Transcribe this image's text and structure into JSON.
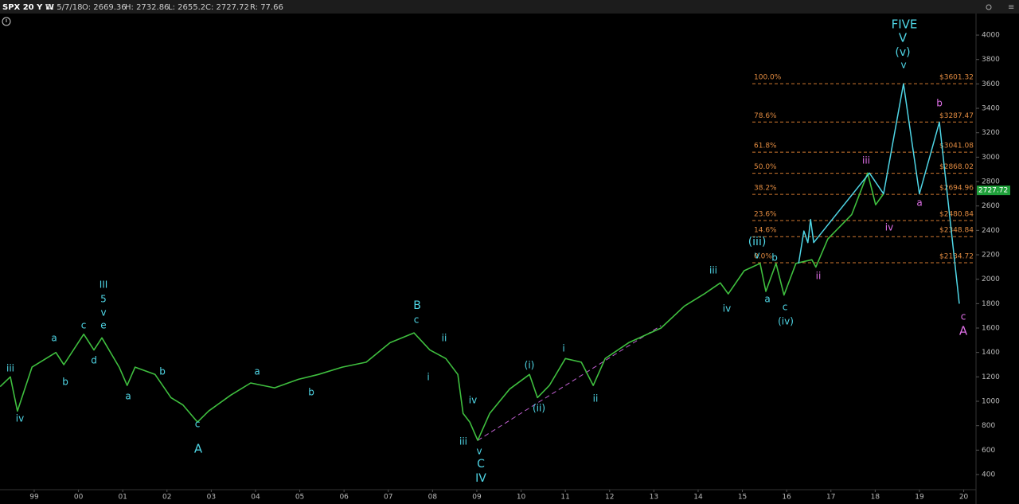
{
  "chart_data": {
    "type": "line",
    "title": "SPX 20 Y W",
    "header_fields": [
      "D: 5/7/18",
      "O: 2669.36",
      "H: 2732.86",
      "L: 2655.2",
      "C: 2727.72",
      "R: 77.66"
    ],
    "color": "#3fbf3f",
    "x": [
      1998.23,
      1998.46,
      1998.62,
      1998.95,
      1999.49,
      1999.67,
      2000.12,
      2000.35,
      2000.53,
      2000.92,
      2001.1,
      2001.28,
      2001.73,
      2002.09,
      2002.36,
      2002.69,
      2002.94,
      2003.44,
      2003.89,
      2004.43,
      2004.97,
      2005.42,
      2005.96,
      2006.5,
      2007.04,
      2007.58,
      2007.94,
      2008.3,
      2008.57,
      2008.69,
      2008.84,
      2009.02,
      2009.29,
      2009.74,
      2010.19,
      2010.37,
      2010.64,
      2011.0,
      2011.36,
      2011.63,
      2011.9,
      2012.43,
      2013.16,
      2013.69,
      2014.14,
      2014.5,
      2014.68,
      2015.04,
      2015.4,
      2015.53,
      2015.76,
      2015.94,
      2016.21,
      2016.57,
      2016.66,
      2016.93,
      2017.47,
      2017.83,
      2018.01,
      2018.19
    ],
    "values": [
      1120,
      1200,
      920,
      1280,
      1400,
      1300,
      1550,
      1420,
      1520,
      1280,
      1130,
      1280,
      1220,
      1030,
      970,
      830,
      920,
      1050,
      1150,
      1110,
      1180,
      1220,
      1280,
      1320,
      1480,
      1560,
      1420,
      1350,
      1220,
      900,
      830,
      680,
      900,
      1100,
      1220,
      1030,
      1130,
      1350,
      1320,
      1130,
      1350,
      1480,
      1600,
      1780,
      1880,
      1970,
      1880,
      2070,
      2130,
      1900,
      2130,
      1870,
      2130,
      2160,
      2100,
      2330,
      2530,
      2870,
      2610,
      2700
    ],
    "projection": {
      "color": "#4fd6e6",
      "x": [
        2016.27,
        2016.39,
        2016.48,
        2016.54,
        2016.61,
        2017.87,
        2018.19,
        2018.64,
        2019.0,
        2019.45,
        2019.9
      ],
      "values": [
        2130,
        2395,
        2300,
        2490,
        2300,
        2870,
        2700,
        3601.32,
        2700,
        3287,
        1800
      ]
    },
    "trendline": {
      "color": "#c060d0",
      "x": [
        2009.02,
        2013.16
      ],
      "values": [
        680,
        1620
      ]
    },
    "fib_levels": [
      {
        "pct": "100.0%",
        "price": {
          "value": 3601.32,
          "label": "$3601.32"
        }
      },
      {
        "pct": "78.6%",
        "price": {
          "value": 3287.47,
          "label": "$3287.47"
        }
      },
      {
        "pct": "61.8%",
        "price": {
          "value": 3041.08,
          "label": "$3041.08"
        }
      },
      {
        "pct": "50.0%",
        "price": {
          "value": 2868.02,
          "label": "$2868.02"
        }
      },
      {
        "pct": "38.2%",
        "price": {
          "value": 2694.96,
          "label": "$2694.96"
        }
      },
      {
        "pct": "23.6%",
        "price": {
          "value": 2480.84,
          "label": "$2480.84"
        }
      },
      {
        "pct": "14.6%",
        "price": {
          "value": 2348.84,
          "label": "$2348.84"
        }
      },
      {
        "pct": "0.0%",
        "price": {
          "value": 2134.72,
          "label": "$2134.72"
        }
      }
    ],
    "last_price": 2727.72,
    "wave_labels": [
      "iii",
      "iv",
      "a",
      "b",
      "c",
      "d",
      "III",
      "5",
      "v",
      "e",
      "a",
      "b",
      "c",
      "A",
      "a",
      "b",
      "B",
      "c",
      "i",
      "ii",
      "iii",
      "iv",
      "v",
      "C",
      "IV",
      "(i)",
      "(ii)",
      "i",
      "ii",
      "iii",
      "iv",
      "(iii)",
      "v",
      "b",
      "a",
      "c",
      "(iv)",
      "ii",
      "iii",
      "iv",
      "a",
      "b",
      "c",
      "A",
      "FIVE",
      "V",
      "(v)",
      "v"
    ],
    "xlim": [
      1998.227,
      2020.26
    ],
    "ylim": [
      276,
      4170
    ],
    "xticks": [
      {
        "value": 1999,
        "label": "99"
      },
      {
        "value": 2000,
        "label": "00"
      },
      {
        "value": 2001,
        "label": "01"
      },
      {
        "value": 2002,
        "label": "02"
      },
      {
        "value": 2003,
        "label": "03"
      },
      {
        "value": 2004,
        "label": "04"
      },
      {
        "value": 2005,
        "label": "05"
      },
      {
        "value": 2006,
        "label": "06"
      },
      {
        "value": 2007,
        "label": "07"
      },
      {
        "value": 2008,
        "label": "08"
      },
      {
        "value": 2009,
        "label": "09"
      },
      {
        "value": 2010,
        "label": "10"
      },
      {
        "value": 2011,
        "label": "11"
      },
      {
        "value": 2012,
        "label": "12"
      },
      {
        "value": 2013,
        "label": "13"
      },
      {
        "value": 2014,
        "label": "14"
      },
      {
        "value": 2015,
        "label": "15"
      },
      {
        "value": 2016,
        "label": "16"
      },
      {
        "value": 2017,
        "label": "17"
      },
      {
        "value": 2018,
        "label": "18"
      },
      {
        "value": 2019,
        "label": "19"
      },
      {
        "value": 2020,
        "label": "20"
      }
    ],
    "yticks": [
      400,
      600,
      800,
      1000,
      1200,
      1400,
      1600,
      1800,
      2000,
      2200,
      2400,
      2600,
      2800,
      3000,
      3200,
      3400,
      3600,
      3800,
      4000
    ]
  }
}
